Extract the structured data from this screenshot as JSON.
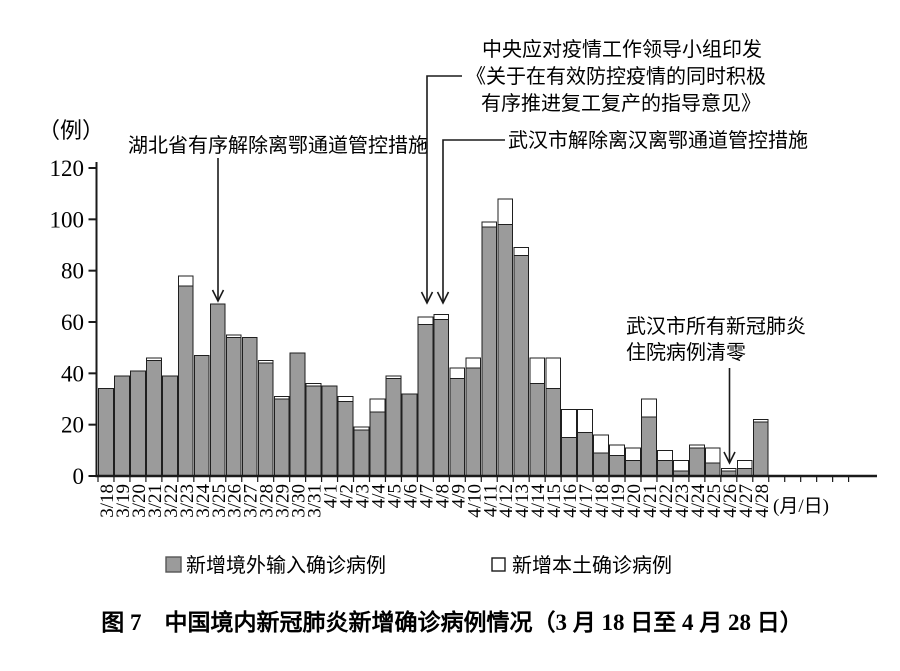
{
  "figure": {
    "y_unit_label": "（例）",
    "x_unit_label": "(月/日)",
    "caption": "图 7　中国境内新冠肺炎新增确诊病例情况（3 月 18 日至 4 月 28 日）"
  },
  "legend": {
    "imported": "新增境外输入确诊病例",
    "local": "新增本土确诊病例"
  },
  "annotations": {
    "hubei": {
      "text": "湖北省有序解除离鄂通道管控措施",
      "target_date": "3/25"
    },
    "central": {
      "lines": [
        "中央应对疫情工作领导小组印发",
        "《关于在有效防控疫情的同时积极",
        "有序推进复工复产的指导意见》"
      ],
      "target_date": "4/7"
    },
    "wuhan_lift": {
      "text": "武汉市解除离汉离鄂通道管控措施",
      "target_date": "4/8"
    },
    "wuhan_zero": {
      "lines": [
        "武汉市所有新冠肺炎",
        "住院病例清零"
      ],
      "target_date": "4/26"
    }
  },
  "colors": {
    "bar_imported": "#9b9b9b",
    "bar_local": "#ffffff",
    "bar_stroke": "#1f1f1f",
    "axis": "#1a1a1a"
  },
  "chart_data": {
    "type": "bar",
    "stacked": true,
    "title": "图 7　中国境内新冠肺炎新增确诊病例情况（3 月 18 日至 4 月 28 日）",
    "ylabel": "（例）",
    "xlabel": "(月/日)",
    "ylim": [
      0,
      120
    ],
    "yticks": [
      0,
      20,
      40,
      60,
      80,
      100,
      120
    ],
    "grid": false,
    "legend_position": "bottom",
    "categories": [
      "3/18",
      "3/19",
      "3/20",
      "3/21",
      "3/22",
      "3/23",
      "3/24",
      "3/25",
      "3/26",
      "3/27",
      "3/28",
      "3/29",
      "3/30",
      "3/31",
      "4/1",
      "4/2",
      "4/3",
      "4/4",
      "4/5",
      "4/6",
      "4/7",
      "4/8",
      "4/9",
      "4/10",
      "4/11",
      "4/12",
      "4/13",
      "4/14",
      "4/15",
      "4/16",
      "4/17",
      "4/18",
      "4/19",
      "4/20",
      "4/21",
      "4/22",
      "4/23",
      "4/24",
      "4/25",
      "4/26",
      "4/27",
      "4/28"
    ],
    "series": [
      {
        "name": "新增境外输入确诊病例",
        "color": "#9b9b9b",
        "values": [
          34,
          39,
          41,
          45,
          39,
          74,
          47,
          67,
          54,
          54,
          44,
          30,
          48,
          35,
          35,
          29,
          18,
          25,
          38,
          32,
          59,
          61,
          38,
          42,
          97,
          98,
          86,
          36,
          34,
          15,
          17,
          9,
          8,
          6,
          23,
          6,
          2,
          11,
          5,
          2,
          3,
          21
        ]
      },
      {
        "name": "新增本土确诊病例",
        "color": "#ffffff",
        "values": [
          0,
          0,
          0,
          1,
          0,
          4,
          0,
          0,
          1,
          0,
          1,
          1,
          0,
          1,
          0,
          2,
          1,
          5,
          1,
          0,
          3,
          2,
          4,
          4,
          2,
          10,
          3,
          10,
          12,
          11,
          9,
          7,
          4,
          5,
          7,
          4,
          4,
          1,
          6,
          1,
          3,
          1
        ]
      }
    ]
  }
}
